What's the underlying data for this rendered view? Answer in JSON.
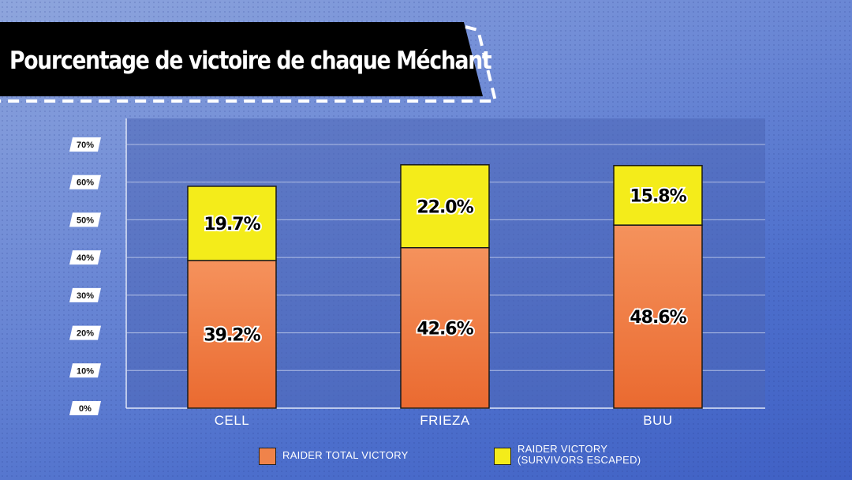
{
  "title": "Pourcentage de victoire de chaque Méchant",
  "colors": {
    "base": "#f0834a",
    "top": "#f4ec1a",
    "grid": "#cfd8f0",
    "plot_bg": "#5068b8"
  },
  "chart_data": {
    "type": "bar",
    "stacked": true,
    "title": "Pourcentage de victoire de chaque Méchant",
    "categories": [
      "CELL",
      "FRIEZA",
      "BUU"
    ],
    "series": [
      {
        "name": "RAIDER TOTAL VICTORY",
        "values": [
          39.2,
          42.6,
          48.6
        ],
        "labels": [
          "39.2%",
          "42.6%",
          "48.6%"
        ],
        "color": "#f0834a"
      },
      {
        "name": "RAIDER VICTORY\n(SURVIVORS ESCAPED)",
        "values": [
          19.7,
          22.0,
          15.8
        ],
        "labels": [
          "19.7%",
          "22.0%",
          "15.8%"
        ],
        "color": "#f4ec1a"
      }
    ],
    "ylim": [
      0,
      70
    ],
    "yticks": [
      "0%",
      "10%",
      "20%",
      "30%",
      "40%",
      "50%",
      "60%",
      "70%"
    ],
    "grid": true,
    "legend_position": "bottom"
  }
}
